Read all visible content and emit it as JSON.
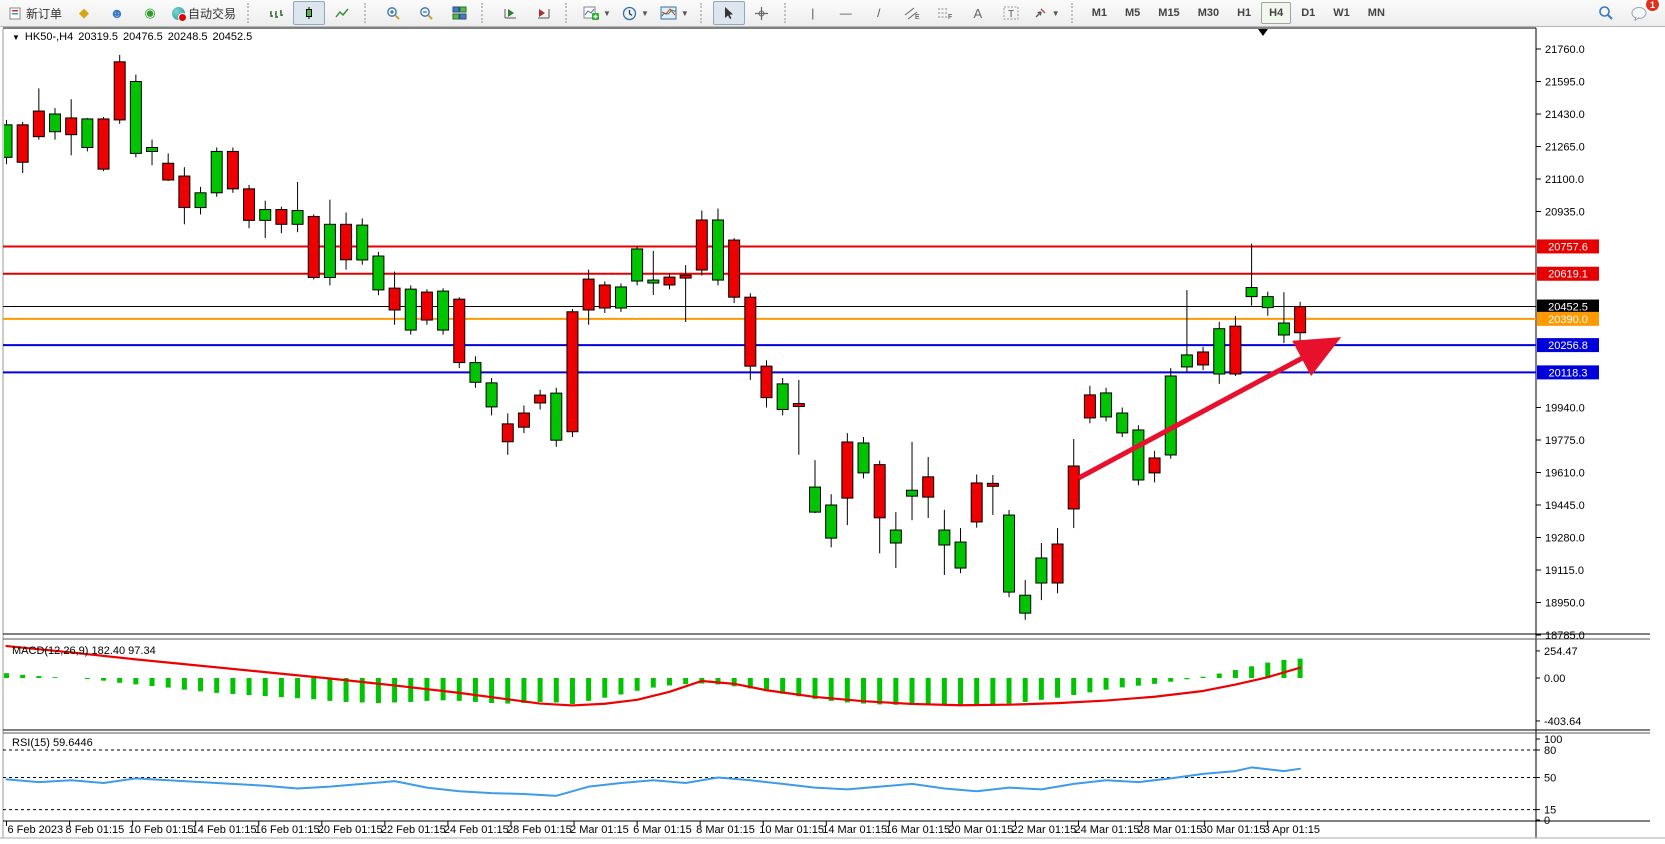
{
  "toolbar": {
    "new_order_label": "新订单",
    "auto_trading_label": "自动交易",
    "timeframes": [
      "M1",
      "M5",
      "M15",
      "M30",
      "H1",
      "H4",
      "D1",
      "W1",
      "MN"
    ],
    "active_timeframe": "H4",
    "chat_badge_count": "1"
  },
  "chart_header": {
    "collapse_arrow": "▼",
    "symbol_period": "HK50-,H4",
    "open": "20319.5",
    "high": "20476.5",
    "low": "20248.5",
    "close": "20452.5"
  },
  "chart_data": {
    "type": "candlestick",
    "symbol": "HK50-",
    "period": "H4",
    "current_ohlc": {
      "open": 20319.5,
      "high": 20476.5,
      "low": 20248.5,
      "close": 20452.5
    },
    "price_axis_ticks": [
      [
        "21760.0",
        21760
      ],
      [
        "21595.0",
        21595
      ],
      [
        "21430.0",
        21430
      ],
      [
        "21265.0",
        21265
      ],
      [
        "21100.0",
        21100
      ],
      [
        "20935.0",
        20935
      ],
      [
        "19940.0",
        19940
      ],
      [
        "19775.0",
        19775
      ],
      [
        "19610.0",
        19610
      ],
      [
        "19445.0",
        19445
      ],
      [
        "19280.0",
        19280
      ],
      [
        "19115.0",
        19115
      ],
      [
        "18950.0",
        18950
      ],
      [
        "18785.0",
        18785
      ]
    ],
    "hlines": [
      {
        "price": 20757.6,
        "label": "20757.6",
        "color": "#e60000",
        "width": 2
      },
      {
        "price": 20619.1,
        "label": "20619.1",
        "color": "#e60000",
        "width": 2
      },
      {
        "price": 20452.5,
        "label": "20452.5",
        "color": "#000000",
        "width": 1
      },
      {
        "price": 20390.0,
        "label": "20390.0",
        "color": "#ff9900",
        "width": 2
      },
      {
        "price": 20256.8,
        "label": "20256.8",
        "color": "#0000dd",
        "width": 2
      },
      {
        "price": 20118.3,
        "label": "20118.3",
        "color": "#0000dd",
        "width": 2
      }
    ],
    "x_labels": [
      "6 Feb 2023",
      "8 Feb 01:15",
      "10 Feb 01:15",
      "14 Feb 01:15",
      "16 Feb 01:15",
      "20 Feb 01:15",
      "22 Feb 01:15",
      "24 Feb 01:15",
      "28 Feb 01:15",
      "2 Mar 01:15",
      "6 Mar 01:15",
      "8 Mar 01:15",
      "10 Mar 01:15",
      "14 Mar 01:15",
      "16 Mar 01:15",
      "20 Mar 01:15",
      "22 Mar 01:15",
      "24 Mar 01:15",
      "28 Mar 01:15",
      "30 Mar 01:15",
      "3 Apr 01:15"
    ],
    "candles": [
      [
        21210,
        21400,
        21175,
        21375,
        "g"
      ],
      [
        21375,
        21390,
        21130,
        21185,
        "r"
      ],
      [
        21445,
        21560,
        21300,
        21315,
        "r"
      ],
      [
        21340,
        21460,
        21300,
        21430,
        "g"
      ],
      [
        21410,
        21505,
        21220,
        21325,
        "r"
      ],
      [
        21260,
        21410,
        21240,
        21405,
        "g"
      ],
      [
        21405,
        21415,
        21140,
        21150,
        "r"
      ],
      [
        21695,
        21730,
        21380,
        21400,
        "r"
      ],
      [
        21230,
        21630,
        21210,
        21595,
        "g"
      ],
      [
        21240,
        21300,
        21170,
        21260,
        "g"
      ],
      [
        21180,
        21230,
        21090,
        21095,
        "r"
      ],
      [
        21115,
        21160,
        20870,
        20955,
        "r"
      ],
      [
        20955,
        21060,
        20920,
        21030,
        "g"
      ],
      [
        21030,
        21260,
        21010,
        21240,
        "g"
      ],
      [
        21240,
        21260,
        21030,
        21050,
        "r"
      ],
      [
        21050,
        21070,
        20850,
        20890,
        "r"
      ],
      [
        20890,
        20990,
        20800,
        20945,
        "g"
      ],
      [
        20945,
        20960,
        20825,
        20870,
        "r"
      ],
      [
        20870,
        21085,
        20830,
        20940,
        "g"
      ],
      [
        20910,
        20920,
        20590,
        20600,
        "r"
      ],
      [
        20600,
        20995,
        20560,
        20870,
        "g"
      ],
      [
        20870,
        20930,
        20640,
        20690,
        "r"
      ],
      [
        20689,
        20900,
        20665,
        20866,
        "g"
      ],
      [
        20537,
        20730,
        20510,
        20709,
        "g"
      ],
      [
        20546,
        20630,
        20360,
        20435,
        "r"
      ],
      [
        20333,
        20560,
        20310,
        20541,
        "g"
      ],
      [
        20526,
        20540,
        20360,
        20384,
        "r"
      ],
      [
        20333,
        20545,
        20310,
        20531,
        "g"
      ],
      [
        20490,
        20500,
        20140,
        20168,
        "r"
      ],
      [
        20068,
        20200,
        20040,
        20168,
        "g"
      ],
      [
        19943,
        20090,
        19900,
        20065,
        "g"
      ],
      [
        19857,
        19910,
        19700,
        19766,
        "r"
      ],
      [
        19912,
        19950,
        19810,
        19840,
        "r"
      ],
      [
        20003,
        20030,
        19930,
        19963,
        "r"
      ],
      [
        19774,
        20040,
        19740,
        20013,
        "g"
      ],
      [
        20426,
        20440,
        19790,
        19817,
        "r"
      ],
      [
        20592,
        20640,
        20360,
        20435,
        "r"
      ],
      [
        20562,
        20580,
        20420,
        20445,
        "r"
      ],
      [
        20445,
        20570,
        20425,
        20552,
        "g"
      ],
      [
        20582,
        20760,
        20560,
        20745,
        "g"
      ],
      [
        20572,
        20735,
        20511,
        20587,
        "g"
      ],
      [
        20602,
        20620,
        20540,
        20562,
        "r"
      ],
      [
        20612,
        20663,
        20374,
        20597,
        "r"
      ],
      [
        20892,
        20940,
        20610,
        20638,
        "r"
      ],
      [
        20587,
        20950,
        20560,
        20892,
        "g"
      ],
      [
        20790,
        20800,
        20470,
        20500,
        "r"
      ],
      [
        20500,
        20520,
        20080,
        20150,
        "r"
      ],
      [
        20150,
        20180,
        19940,
        19990,
        "r"
      ],
      [
        19930,
        20090,
        19900,
        20060,
        "g"
      ],
      [
        19960,
        20080,
        19700,
        19945,
        "r"
      ],
      [
        19409,
        19673,
        19404,
        19536,
        "g"
      ],
      [
        19277,
        19500,
        19230,
        19445,
        "g"
      ],
      [
        19765,
        19810,
        19343,
        19480,
        "r"
      ],
      [
        19608,
        19790,
        19580,
        19760,
        "g"
      ],
      [
        19650,
        19670,
        19200,
        19380,
        "r"
      ],
      [
        19252,
        19409,
        19125,
        19318,
        "g"
      ],
      [
        19490,
        19765,
        19368,
        19520,
        "g"
      ],
      [
        19588,
        19689,
        19379,
        19485,
        "r"
      ],
      [
        19242,
        19420,
        19090,
        19318,
        "g"
      ],
      [
        19125,
        19328,
        19099,
        19257,
        "g"
      ],
      [
        19557,
        19600,
        19330,
        19359,
        "r"
      ],
      [
        19555,
        19597,
        19394,
        19540,
        "r"
      ],
      [
        19003,
        19420,
        18977,
        19394,
        "g"
      ],
      [
        18896,
        19064,
        18862,
        18987,
        "g"
      ],
      [
        19049,
        19252,
        18962,
        19176,
        "g"
      ],
      [
        19247,
        19328,
        18997,
        19049,
        "r"
      ],
      [
        19643,
        19780,
        19328,
        19425,
        "r"
      ],
      [
        20004,
        20050,
        19860,
        19887,
        "r"
      ],
      [
        19892,
        20040,
        19870,
        20014,
        "g"
      ],
      [
        19811,
        19940,
        19790,
        19912,
        "g"
      ],
      [
        19572,
        19850,
        19545,
        19826,
        "g"
      ],
      [
        19684,
        19720,
        19560,
        19608,
        "r"
      ],
      [
        19699,
        20140,
        19680,
        20100,
        "g"
      ],
      [
        20146,
        20536,
        20120,
        20207,
        "g"
      ],
      [
        20222,
        20248,
        20130,
        20156,
        "r"
      ],
      [
        20110,
        20375,
        20060,
        20340,
        "g"
      ],
      [
        20353,
        20404,
        20100,
        20110,
        "r"
      ],
      [
        20503,
        20772,
        20457,
        20549,
        "g"
      ],
      [
        20447,
        20528,
        20406,
        20503,
        "g"
      ],
      [
        20308,
        20525,
        20267,
        20369,
        "g"
      ],
      [
        20319.5,
        20476.5,
        20248.5,
        20452.5,
        "r"
      ]
    ],
    "arrow_annotation": {
      "from_index": 66.3,
      "from_price": 19582,
      "to_index": 82.0,
      "to_price": 20273,
      "color": "#e8112d"
    },
    "macd": {
      "label": "MACD(12,26,9) 182.40 97.34",
      "axis_ticks": [
        [
          "254.47",
          254.47
        ],
        [
          "0.00",
          0
        ],
        [
          "-403.64",
          -403.64
        ]
      ],
      "histogram": [
        45,
        30,
        18,
        8,
        0,
        -10,
        -25,
        -45,
        -60,
        -75,
        -90,
        -110,
        -125,
        -140,
        -150,
        -160,
        -170,
        -180,
        -190,
        -200,
        -215,
        -225,
        -230,
        -235,
        -230,
        -225,
        -215,
        -210,
        -215,
        -225,
        -235,
        -240,
        -235,
        -225,
        -230,
        -245,
        -215,
        -185,
        -155,
        -120,
        -90,
        -70,
        -58,
        -52,
        -60,
        -78,
        -98,
        -122,
        -148,
        -172,
        -196,
        -215,
        -230,
        -240,
        -248,
        -252,
        -254,
        -250,
        -246,
        -248,
        -252,
        -250,
        -240,
        -225,
        -205,
        -185,
        -160,
        -135,
        -110,
        -88,
        -72,
        -55,
        -35,
        -12,
        12,
        42,
        75,
        110,
        145,
        170,
        182.4
      ],
      "signal_points": [
        [
          0,
          300
        ],
        [
          4,
          240
        ],
        [
          8,
          175
        ],
        [
          12,
          115
        ],
        [
          16,
          55
        ],
        [
          20,
          -5
        ],
        [
          24,
          -70
        ],
        [
          28,
          -140
        ],
        [
          31,
          -200
        ],
        [
          33,
          -240
        ],
        [
          35,
          -258
        ],
        [
          37,
          -242
        ],
        [
          39,
          -205
        ],
        [
          41,
          -130
        ],
        [
          43,
          -28
        ],
        [
          45,
          -55
        ],
        [
          47,
          -115
        ],
        [
          50,
          -178
        ],
        [
          53,
          -218
        ],
        [
          56,
          -244
        ],
        [
          59,
          -256
        ],
        [
          62,
          -251
        ],
        [
          65,
          -236
        ],
        [
          68,
          -212
        ],
        [
          71,
          -176
        ],
        [
          74,
          -122
        ],
        [
          76,
          -62
        ],
        [
          78,
          8
        ],
        [
          80,
          97.34
        ]
      ]
    },
    "rsi": {
      "label": "RSI(15) 59.6446",
      "axis_ticks": [
        [
          "100",
          100
        ],
        [
          "80",
          80
        ],
        [
          "50",
          50
        ],
        [
          "15",
          15
        ],
        [
          "0",
          0
        ]
      ],
      "dashed_levels": [
        80,
        50,
        15
      ],
      "points": [
        [
          0,
          48
        ],
        [
          2,
          45
        ],
        [
          4,
          47
        ],
        [
          6,
          44
        ],
        [
          8,
          49
        ],
        [
          10,
          47
        ],
        [
          13,
          44
        ],
        [
          16,
          41
        ],
        [
          18,
          38
        ],
        [
          20,
          40
        ],
        [
          22,
          43
        ],
        [
          24,
          46
        ],
        [
          26,
          39
        ],
        [
          28,
          35
        ],
        [
          30,
          33
        ],
        [
          32,
          32
        ],
        [
          34,
          30
        ],
        [
          36,
          40
        ],
        [
          38,
          44
        ],
        [
          40,
          47
        ],
        [
          42,
          44
        ],
        [
          44,
          50
        ],
        [
          46,
          47
        ],
        [
          48,
          43
        ],
        [
          50,
          39
        ],
        [
          52,
          37
        ],
        [
          54,
          40
        ],
        [
          56,
          43
        ],
        [
          58,
          38
        ],
        [
          60,
          35
        ],
        [
          62,
          39
        ],
        [
          64,
          37
        ],
        [
          66,
          43
        ],
        [
          68,
          47
        ],
        [
          70,
          45
        ],
        [
          72,
          49
        ],
        [
          74,
          54
        ],
        [
          76,
          57
        ],
        [
          77,
          61
        ],
        [
          78,
          59
        ],
        [
          79,
          57
        ],
        [
          80,
          59.6
        ]
      ]
    }
  }
}
